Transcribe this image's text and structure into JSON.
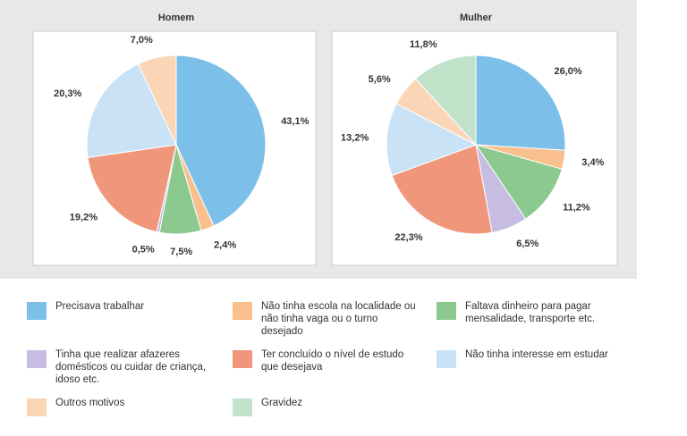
{
  "chart_data": [
    {
      "type": "pie",
      "title": "Homem",
      "values": [
        43.1,
        2.4,
        7.5,
        0.5,
        19.2,
        20.3,
        7.0
      ],
      "value_labels": [
        "43,1%",
        "2,4%",
        "7,5%",
        "0,5%",
        "19,2%",
        "20,3%",
        "7,0%"
      ],
      "colors": [
        "#7cc0ea",
        "#f9bf8c",
        "#8bc98f",
        "#c7bde2",
        "#f0967b",
        "#c9e2f6",
        "#fbd6b6"
      ]
    },
    {
      "type": "pie",
      "title": "Mulher",
      "categories": [
        "Precisava trabalhar",
        "Não tinha escola na localidade ou não tinha vaga ou o turno desejado",
        "Faltava dinheiro para pagar mensalidade, transporte etc.",
        "Tinha que realizar afazeres domésticos ou cuidar de criança, idoso etc.",
        "Ter concluído o nível de estudo que desejava",
        "Não tinha interesse em estudar",
        "Outros motivos",
        "Gravidez"
      ],
      "values": [
        26.0,
        3.4,
        11.2,
        6.5,
        22.3,
        13.2,
        5.6,
        11.8
      ],
      "value_labels": [
        "26,0%",
        "3,4%",
        "11,2%",
        "6,5%",
        "22,3%",
        "13,2%",
        "5,6%",
        "11,8%"
      ],
      "colors": [
        "#7cc0ea",
        "#f9bf8c",
        "#8bc98f",
        "#c7bde2",
        "#f0967b",
        "#c9e2f6",
        "#fbd6b6",
        "#c0e3c9"
      ]
    }
  ]
}
